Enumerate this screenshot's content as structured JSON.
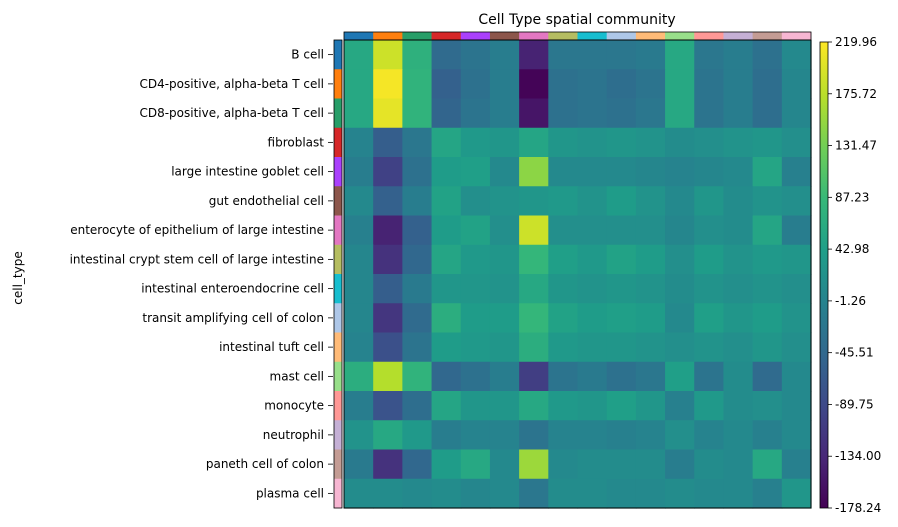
{
  "chart_data": {
    "type": "heatmap",
    "title": "Cell Type spatial community",
    "ylabel": "cell_type",
    "xlabel": "",
    "rows": [
      "B cell",
      "CD4-positive, alpha-beta T cell",
      "CD8-positive, alpha-beta T cell",
      "fibroblast",
      "large intestine goblet cell",
      "gut endothelial cell",
      "enterocyte of epithelium of large intestine",
      "intestinal crypt stem cell of large intestine",
      "intestinal enteroendocrine cell",
      "transit amplifying cell of colon",
      "intestinal tuft cell",
      "mast cell",
      "monocyte",
      "neutrophil",
      "paneth cell of colon",
      "plasma cell"
    ],
    "category_colors": [
      "#1f77b4",
      "#ff7f0e",
      "#279e68",
      "#d62728",
      "#aa40fc",
      "#8c564b",
      "#e377c2",
      "#b5bd61",
      "#17becf",
      "#aec7e8",
      "#ffbb78",
      "#98df8a",
      "#ff9896",
      "#c5b0d5",
      "#c49c94",
      "#f7b6d2"
    ],
    "values": [
      [
        60,
        190,
        75,
        -40,
        -25,
        -10,
        -140,
        -20,
        -20,
        -20,
        -15,
        60,
        -20,
        -10,
        -30,
        10
      ],
      [
        60,
        215,
        80,
        -55,
        -30,
        -10,
        -175,
        -30,
        -25,
        -35,
        -25,
        60,
        -25,
        -10,
        -35,
        5
      ],
      [
        60,
        205,
        80,
        -50,
        -25,
        -10,
        -155,
        -30,
        -25,
        -30,
        -20,
        60,
        -25,
        -10,
        -35,
        5
      ],
      [
        0,
        -60,
        -20,
        55,
        35,
        30,
        55,
        30,
        25,
        30,
        25,
        15,
        20,
        25,
        30,
        20
      ],
      [
        -10,
        -100,
        -30,
        40,
        45,
        10,
        150,
        10,
        10,
        10,
        5,
        0,
        5,
        10,
        55,
        -5
      ],
      [
        10,
        -55,
        -10,
        50,
        20,
        25,
        30,
        35,
        25,
        40,
        25,
        10,
        30,
        15,
        25,
        20
      ],
      [
        -5,
        -140,
        -55,
        40,
        50,
        20,
        190,
        20,
        20,
        20,
        20,
        5,
        20,
        15,
        55,
        -10
      ],
      [
        5,
        -120,
        -45,
        55,
        35,
        30,
        85,
        45,
        35,
        50,
        40,
        20,
        40,
        25,
        35,
        30
      ],
      [
        5,
        -60,
        -15,
        30,
        30,
        25,
        60,
        30,
        25,
        30,
        25,
        15,
        25,
        20,
        25,
        20
      ],
      [
        5,
        -115,
        -40,
        70,
        40,
        40,
        85,
        50,
        40,
        45,
        40,
        10,
        45,
        30,
        40,
        25
      ],
      [
        0,
        -80,
        -25,
        40,
        35,
        30,
        70,
        35,
        30,
        30,
        25,
        20,
        25,
        20,
        30,
        20
      ],
      [
        70,
        175,
        80,
        -45,
        -30,
        -10,
        -105,
        -25,
        -15,
        -30,
        -20,
        45,
        -25,
        15,
        -40,
        10
      ],
      [
        -10,
        -75,
        -35,
        55,
        30,
        30,
        60,
        35,
        30,
        45,
        30,
        -5,
        35,
        15,
        20,
        10
      ],
      [
        25,
        60,
        35,
        -10,
        0,
        0,
        -25,
        0,
        0,
        -5,
        0,
        20,
        0,
        10,
        -5,
        10
      ],
      [
        -15,
        -120,
        -45,
        40,
        60,
        10,
        160,
        10,
        15,
        15,
        15,
        -10,
        15,
        10,
        60,
        -5
      ],
      [
        15,
        15,
        10,
        15,
        5,
        10,
        -20,
        15,
        15,
        10,
        10,
        15,
        10,
        10,
        -5,
        30
      ]
    ],
    "colorbar": {
      "colormap": "viridis",
      "min": -178.24,
      "max": 219.96,
      "ticks": [
        "219.96",
        "175.72",
        "131.47",
        "87.23",
        "42.98",
        "-1.26",
        "-45.51",
        "-89.75",
        "-134.00",
        "-178.24"
      ]
    },
    "grid": false
  }
}
